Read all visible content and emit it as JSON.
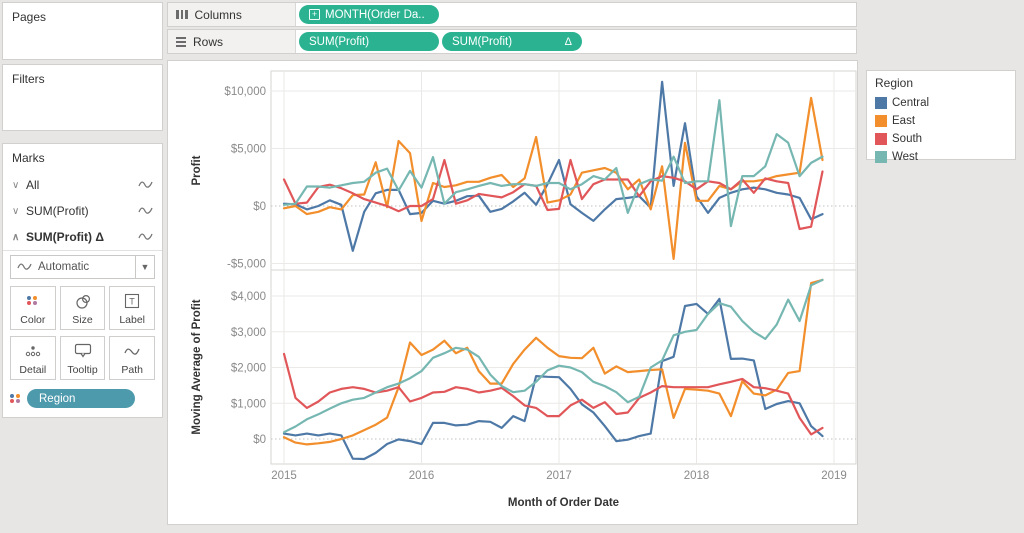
{
  "shelves": {
    "columns_label": "Columns",
    "rows_label": "Rows",
    "columns_pill": "MONTH(Order Da..",
    "rows_pill_1": "SUM(Profit)",
    "rows_pill_2": "SUM(Profit)",
    "rows_pill_2_suffix": "Δ",
    "pill_color": "#2bb391"
  },
  "sidebar": {
    "pages_label": "Pages",
    "filters_label": "Filters",
    "marks": {
      "title": "Marks",
      "items": [
        {
          "chevron": "∨",
          "label": "All"
        },
        {
          "chevron": "∨",
          "label": "SUM(Profit)"
        },
        {
          "chevron": "∧",
          "label": "SUM(Profit) Δ"
        }
      ],
      "mark_type_dropdown": "Automatic",
      "buttons": [
        {
          "label": "Color"
        },
        {
          "label": "Size"
        },
        {
          "label": "Label"
        },
        {
          "label": "Detail"
        },
        {
          "label": "Tooltip"
        },
        {
          "label": "Path"
        }
      ],
      "encoding_pill": "Region",
      "encoding_pill_color": "#4e9aad"
    }
  },
  "legend": {
    "title": "Region",
    "items": [
      {
        "label": "Central",
        "color": "#4e79a7"
      },
      {
        "label": "East",
        "color": "#f28e2b"
      },
      {
        "label": "South",
        "color": "#e15759"
      },
      {
        "label": "West",
        "color": "#76b7b2"
      }
    ]
  },
  "chart_data": {
    "type": "line",
    "x": {
      "title": "Month of Order Date",
      "tick_labels": [
        "2015",
        "2016",
        "2017",
        "2018",
        "2019"
      ],
      "months_start": "2015-01",
      "months_count": 48
    },
    "colors": {
      "Central": "#4e79a7",
      "East": "#f28e2b",
      "South": "#e15759",
      "West": "#76b7b2"
    },
    "legend_position": "right",
    "grid": true,
    "panels": [
      {
        "ylabel": "Profit",
        "ylim": [
          -6000,
          11200
        ],
        "y_ticks": [
          {
            "v": 10000,
            "label": "$10,000"
          },
          {
            "v": 5000,
            "label": "$5,000"
          },
          {
            "v": 0,
            "label": "$0"
          },
          {
            "v": -5000,
            "label": "-$5,000"
          }
        ],
        "series": [
          {
            "name": "Central",
            "values": [
              200,
              150,
              -300,
              0,
              500,
              100,
              -3900,
              -500,
              1100,
              1400,
              1400,
              -700,
              -600,
              450,
              200,
              450,
              850,
              900,
              -500,
              -250,
              400,
              1150,
              100,
              1900,
              4000,
              150,
              -600,
              -1300,
              -300,
              600,
              700,
              850,
              -150,
              10800,
              1750,
              7200,
              850,
              -600,
              700,
              1150,
              1450,
              1600,
              1450,
              1150,
              1000,
              700,
              -1150,
              -700
            ]
          },
          {
            "name": "East",
            "values": [
              -200,
              0,
              -700,
              -500,
              -100,
              -300,
              950,
              1000,
              3800,
              -100,
              5650,
              4600,
              -1300,
              2000,
              1650,
              1800,
              2100,
              2100,
              2450,
              2700,
              1650,
              2400,
              6000,
              300,
              500,
              1000,
              2900,
              3100,
              3300,
              2900,
              1450,
              2300,
              -300,
              3450,
              -4600,
              5500,
              450,
              450,
              1750,
              1450,
              2150,
              2150,
              2300,
              2600,
              2750,
              2900,
              9400,
              4000
            ]
          },
          {
            "name": "South",
            "values": [
              2300,
              200,
              300,
              1650,
              1850,
              1550,
              1100,
              600,
              300,
              0,
              -450,
              0,
              0,
              600,
              4000,
              200,
              500,
              1050,
              900,
              750,
              1200,
              1900,
              1750,
              -350,
              -250,
              4000,
              600,
              1900,
              2300,
              2300,
              2300,
              850,
              2150,
              2600,
              2450,
              2150,
              1450,
              2150,
              2000,
              1450,
              2300,
              1150,
              2400,
              2150,
              2000,
              -2000,
              -1800,
              3000
            ]
          },
          {
            "name": "West",
            "values": [
              100,
              200,
              1700,
              1700,
              1600,
              1800,
              2000,
              2100,
              2900,
              3250,
              1350,
              3050,
              1600,
              4250,
              200,
              1200,
              1450,
              1750,
              2000,
              1750,
              1900,
              1900,
              1750,
              2000,
              2000,
              1450,
              1900,
              2600,
              2300,
              3300,
              -600,
              1900,
              2300,
              2200,
              4300,
              2000,
              2150,
              2150,
              9200,
              -1750,
              2600,
              2600,
              3450,
              6250,
              5500,
              2600,
              3750,
              4300
            ]
          }
        ]
      },
      {
        "ylabel": "Moving Average of Profit",
        "ylim": [
          -800,
          4700
        ],
        "y_ticks": [
          {
            "v": 4000,
            "label": "$4,000"
          },
          {
            "v": 3000,
            "label": "$3,000"
          },
          {
            "v": 2000,
            "label": "$2,000"
          },
          {
            "v": 1000,
            "label": "$1,000"
          },
          {
            "v": 0,
            "label": "$0"
          }
        ],
        "series": [
          {
            "name": "Central",
            "values": [
              150,
              100,
              150,
              100,
              150,
              100,
              -550,
              -560,
              -390,
              -140,
              -10,
              -60,
              -140,
              450,
              450,
              380,
              400,
              500,
              480,
              310,
              640,
              500,
              1760,
              1740,
              1730,
              1400,
              970,
              740,
              360,
              -60,
              -20,
              80,
              150,
              2180,
              2300,
              3720,
              3780,
              3500,
              3920,
              2240,
              2250,
              2200,
              840,
              980,
              1060,
              1000,
              360,
              80
            ]
          },
          {
            "name": "East",
            "values": [
              50,
              -100,
              -150,
              -120,
              -80,
              0,
              100,
              250,
              400,
              600,
              1450,
              2700,
              2350,
              2500,
              2750,
              2400,
              2550,
              1900,
              1550,
              1550,
              2100,
              2500,
              2830,
              2550,
              2320,
              2270,
              2260,
              2550,
              1830,
              2030,
              1870,
              1900,
              1930,
              1950,
              590,
              1400,
              1380,
              1350,
              1270,
              640,
              1620,
              1270,
              1220,
              1380,
              1850,
              1900,
              4360,
              4450
            ]
          },
          {
            "name": "South",
            "values": [
              2380,
              1150,
              870,
              1050,
              1300,
              1400,
              1450,
              1400,
              1300,
              1350,
              1450,
              1050,
              1150,
              1300,
              1320,
              1450,
              1400,
              1300,
              1350,
              1430,
              1200,
              940,
              870,
              640,
              640,
              940,
              1100,
              870,
              1030,
              700,
              740,
              1150,
              1300,
              1480,
              1450,
              1450,
              1450,
              1450,
              1530,
              1600,
              1680,
              1450,
              1420,
              1350,
              1270,
              590,
              130,
              310
            ]
          },
          {
            "name": "West",
            "values": [
              190,
              350,
              550,
              690,
              850,
              1000,
              1100,
              1150,
              1300,
              1450,
              1550,
              1700,
              1900,
              2270,
              2400,
              2550,
              2500,
              2300,
              1800,
              1480,
              1310,
              1350,
              1600,
              1920,
              2050,
              2000,
              1870,
              1600,
              1480,
              1310,
              1030,
              1180,
              2000,
              2200,
              2900,
              3000,
              3050,
              3500,
              3800,
              3700,
              3300,
              3000,
              2800,
              3200,
              3900,
              3300,
              4300,
              4450
            ]
          }
        ]
      }
    ]
  }
}
